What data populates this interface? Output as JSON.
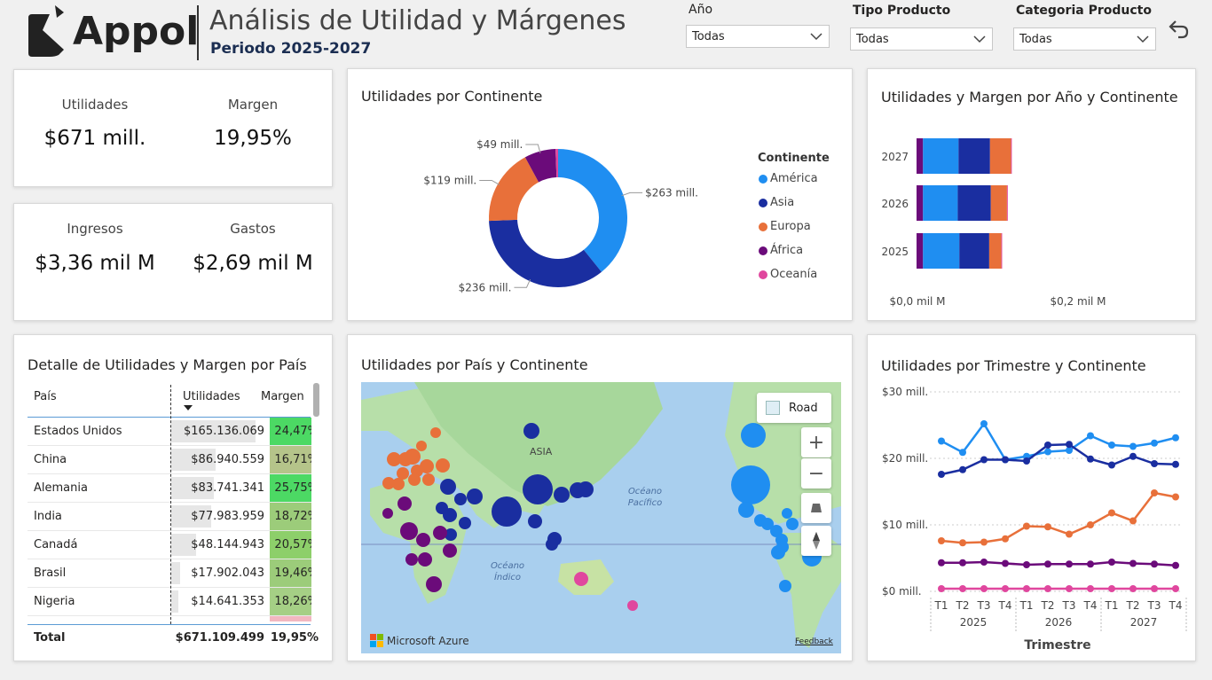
{
  "header": {
    "logo_text": "Appol",
    "title": "Análisis de Utilidad y Márgenes",
    "subtitle": "Periodo 2025-2027"
  },
  "filters": [
    {
      "label": "Año",
      "value": "Todas"
    },
    {
      "label": "Tipo Producto",
      "value": "Todas"
    },
    {
      "label": "Categoria Producto",
      "value": "Todas"
    }
  ],
  "kpis": {
    "utilidades_label": "Utilidades",
    "utilidades_value": "$671 mill.",
    "margen_label": "Margen",
    "margen_value": "19,95%",
    "ingresos_label": "Ingresos",
    "ingresos_value": "$3,36 mil M",
    "gastos_label": "Gastos",
    "gastos_value": "$2,69 mil M"
  },
  "colors": {
    "america": "#1f8ef1",
    "asia": "#1a2ea0",
    "europa": "#e8703a",
    "africa": "#6b0b7a",
    "oceania": "#e0479e"
  },
  "donut": {
    "title": "Utilidades por Continente",
    "legend_title": "Continente",
    "legend": [
      "América",
      "Asia",
      "Europa",
      "África",
      "Oceanía"
    ]
  },
  "bar": {
    "title": "Utilidades y Margen por Año y Continente"
  },
  "detail": {
    "title": "Detalle de Utilidades y Margen por País",
    "col_pais": "País",
    "col_util": "Utilidades",
    "col_margen": "Margen",
    "rows": [
      {
        "pais": "Estados Unidos",
        "util": "$165.136.069",
        "margen": "24,47%"
      },
      {
        "pais": "China",
        "util": "$86.940.559",
        "margen": "16,71%"
      },
      {
        "pais": "Alemania",
        "util": "$83.741.341",
        "margen": "25,75%"
      },
      {
        "pais": "India",
        "util": "$77.983.959",
        "margen": "18,72%"
      },
      {
        "pais": "Canadá",
        "util": "$48.144.943",
        "margen": "20,57%"
      },
      {
        "pais": "Brasil",
        "util": "$17.902.043",
        "margen": "19,46%"
      },
      {
        "pais": "Nigeria",
        "util": "$14.641.353",
        "margen": "18,26%"
      }
    ],
    "total_label": "Total",
    "total_util": "$671.109.499",
    "total_margen": "19,95%"
  },
  "map": {
    "title": "Utilidades por País y Continente",
    "road_label": "Road",
    "label_asia": "ASIA",
    "label_pacifico_1": "Océano",
    "label_pacifico_2": "Pacífico",
    "label_indico_1": "Océano",
    "label_indico_2": "Índico",
    "attribution": "Microsoft Azure",
    "feedback": "Feedback"
  },
  "line": {
    "title": "Utilidades por Trimestre y Continente",
    "xlabel": "Trimestre"
  },
  "chart_data": [
    {
      "type": "pie",
      "title": "Utilidades por Continente",
      "categories": [
        "América",
        "Asia",
        "Europa",
        "África",
        "Oceanía"
      ],
      "values": [
        263,
        236,
        119,
        49,
        4
      ],
      "labels": [
        "$263 mill.",
        "$236 mill.",
        "$119 mill.",
        "$49 mill.",
        ""
      ],
      "legend_title": "Continente",
      "legend_position": "right"
    },
    {
      "type": "bar",
      "title": "Utilidades y Margen por Año y Continente",
      "orientation": "horizontal",
      "stacked": true,
      "categories": [
        "2027",
        "2026",
        "2025"
      ],
      "series": [
        {
          "name": "África",
          "values": [
            0.008,
            0.008,
            0.008
          ]
        },
        {
          "name": "América",
          "values": [
            0.044,
            0.043,
            0.045
          ]
        },
        {
          "name": "Asia",
          "values": [
            0.039,
            0.041,
            0.037
          ]
        },
        {
          "name": "Europa",
          "values": [
            0.026,
            0.02,
            0.015
          ]
        },
        {
          "name": "Oceanía",
          "values": [
            0.001,
            0.001,
            0.001
          ]
        }
      ],
      "xticks": [
        "$0,0 mil M",
        "$0,2 mil M"
      ],
      "xlim": [
        0,
        0.2
      ]
    },
    {
      "type": "line",
      "title": "Utilidades por Trimestre y Continente",
      "xlabel": "Trimestre",
      "x": [
        "T1",
        "T2",
        "T3",
        "T4",
        "T1",
        "T2",
        "T3",
        "T4",
        "T1",
        "T2",
        "T3",
        "T4"
      ],
      "x_groups": [
        "2025",
        "2026",
        "2027"
      ],
      "ylim": [
        0,
        30
      ],
      "yticks": [
        "$0 mill.",
        "$10 mill.",
        "$20 mill.",
        "$30 mill."
      ],
      "series": [
        {
          "name": "América",
          "values": [
            22.6,
            20.9,
            25.2,
            19.8,
            20.3,
            21.0,
            21.2,
            23.4,
            22.0,
            21.8,
            22.3,
            23.1
          ]
        },
        {
          "name": "Asia",
          "values": [
            17.6,
            18.3,
            19.8,
            19.8,
            19.6,
            22.0,
            22.1,
            19.9,
            19.0,
            20.3,
            19.2,
            19.1
          ]
        },
        {
          "name": "Europa",
          "values": [
            7.6,
            7.3,
            7.4,
            7.9,
            9.8,
            9.7,
            8.6,
            10.0,
            11.8,
            10.6,
            14.8,
            14.2
          ]
        },
        {
          "name": "África",
          "values": [
            4.3,
            4.3,
            4.4,
            4.2,
            4.0,
            4.1,
            4.1,
            4.1,
            4.4,
            4.2,
            4.1,
            3.9
          ]
        },
        {
          "name": "Oceanía",
          "values": [
            0.4,
            0.4,
            0.4,
            0.4,
            0.4,
            0.4,
            0.4,
            0.4,
            0.4,
            0.4,
            0.4,
            0.4
          ]
        }
      ]
    }
  ]
}
